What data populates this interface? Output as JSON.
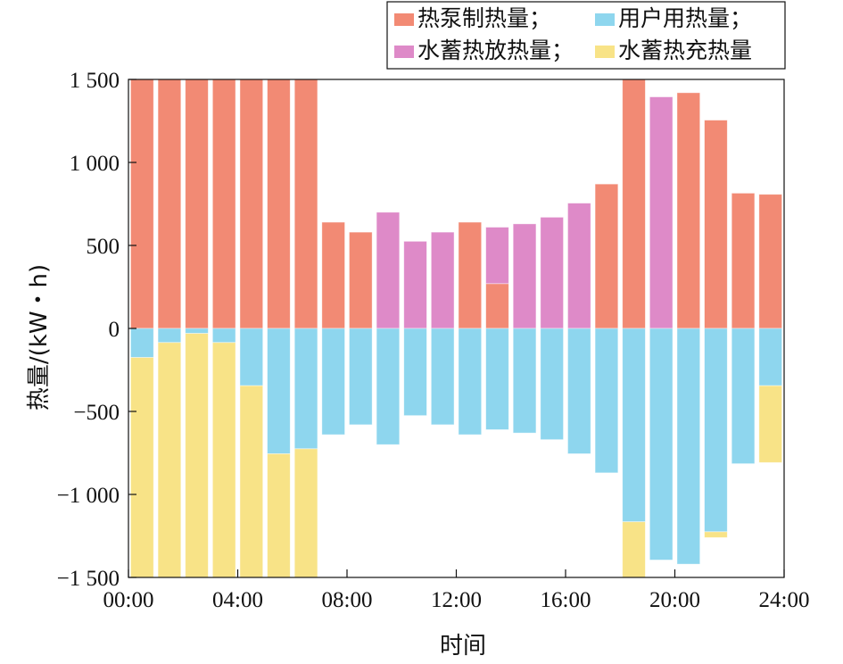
{
  "chart_data": {
    "type": "bar",
    "stacked": true,
    "xlabel": "时间",
    "ylabel": "热量/(kW・h)",
    "ylim": [
      -1500,
      1500
    ],
    "xlim": [
      0,
      24
    ],
    "x_ticks": [
      {
        "value": 0,
        "label": "00:00"
      },
      {
        "value": 4,
        "label": "04:00"
      },
      {
        "value": 8,
        "label": "08:00"
      },
      {
        "value": 12,
        "label": "12:00"
      },
      {
        "value": 16,
        "label": "16:00"
      },
      {
        "value": 20,
        "label": "20:00"
      },
      {
        "value": 24,
        "label": "24:00"
      }
    ],
    "y_ticks": [
      {
        "value": 1500,
        "label": "1 500"
      },
      {
        "value": 1000,
        "label": "1 000"
      },
      {
        "value": 500,
        "label": "500"
      },
      {
        "value": 0,
        "label": "0"
      },
      {
        "value": -500,
        "label": "-500"
      },
      {
        "value": -1000,
        "label": "-1 000"
      },
      {
        "value": -1500,
        "label": "-1 500"
      }
    ],
    "grid": false,
    "legend_position": "top-right",
    "hours": [
      1,
      2,
      3,
      4,
      5,
      6,
      7,
      8,
      9,
      10,
      11,
      12,
      13,
      14,
      15,
      16,
      17,
      18,
      19,
      20,
      21,
      22,
      23,
      24
    ],
    "series": [
      {
        "name": "热泵制热量；",
        "color": "#F28A74",
        "key": "heat_pump",
        "values": [
          1500,
          1500,
          1500,
          1500,
          1500,
          1500,
          1500,
          640,
          580,
          0,
          0,
          0,
          640,
          270,
          0,
          0,
          0,
          870,
          1500,
          0,
          1420,
          1255,
          815,
          808
        ]
      },
      {
        "name": "水蓄热放热量；",
        "color": "#DE8AC8",
        "key": "storage_release",
        "values": [
          0,
          0,
          0,
          0,
          0,
          0,
          0,
          0,
          0,
          700,
          525,
          580,
          0,
          340,
          630,
          670,
          755,
          0,
          0,
          1395,
          0,
          0,
          0,
          0
        ]
      },
      {
        "name": "用户用热量；",
        "color": "#8ED6EE",
        "key": "user_heat",
        "values": [
          -175,
          -85,
          -30,
          -85,
          -345,
          -755,
          -725,
          -640,
          -580,
          -700,
          -525,
          -580,
          -640,
          -610,
          -630,
          -670,
          -755,
          -870,
          -1165,
          -1395,
          -1420,
          -1225,
          -815,
          -345
        ]
      },
      {
        "name": "水蓄热充热量",
        "color": "#F8E387",
        "key": "storage_charge",
        "values": [
          -1325,
          -1415,
          -1470,
          -1415,
          -1155,
          -745,
          -775,
          0,
          0,
          0,
          0,
          0,
          0,
          0,
          0,
          0,
          0,
          0,
          -335,
          0,
          0,
          -35,
          0,
          -463
        ]
      }
    ],
    "legend_order": [
      "heat_pump",
      "user_heat",
      "storage_release",
      "storage_charge"
    ]
  }
}
